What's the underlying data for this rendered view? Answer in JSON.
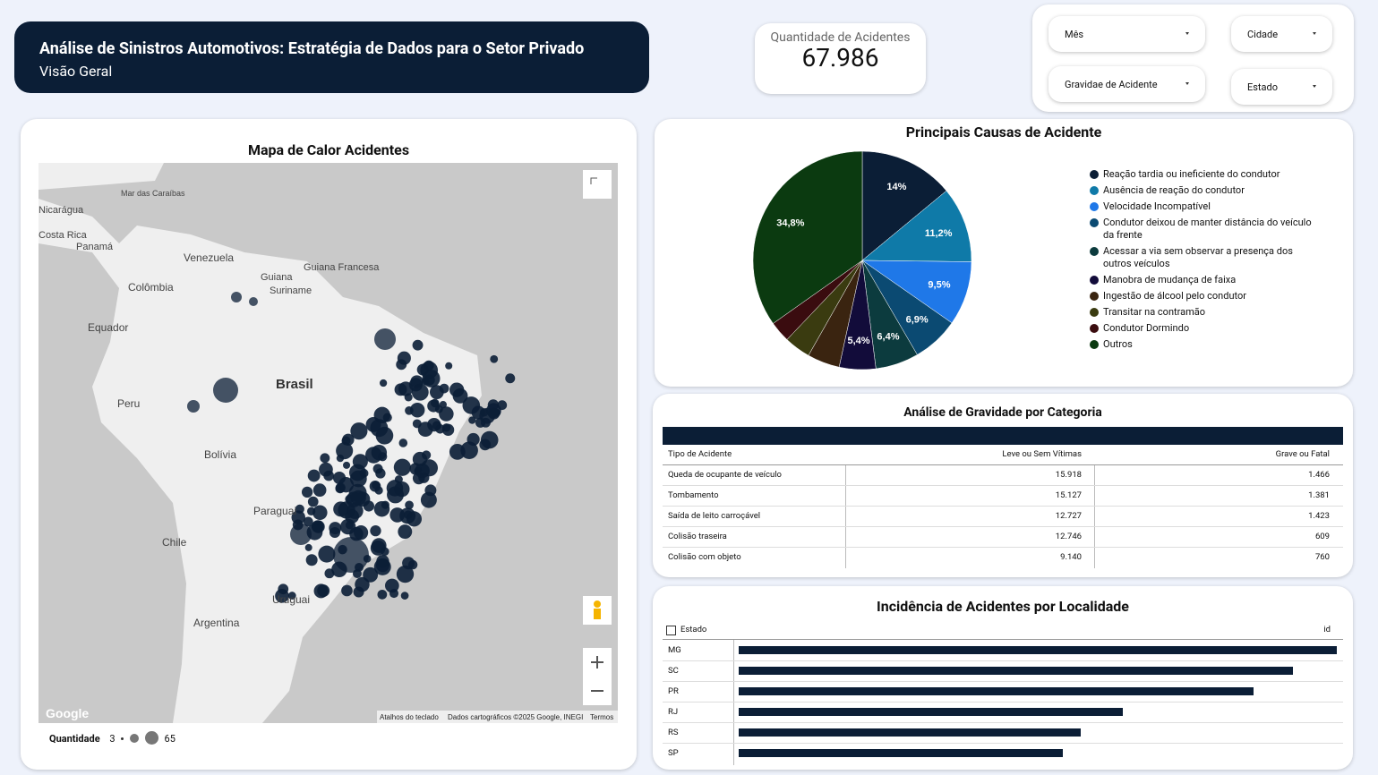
{
  "header": {
    "title": "Análise de Sinistros Automotivos: Estratégia de Dados para o Setor Privado",
    "subtitle": "Visão Geral"
  },
  "kpi": {
    "label": "Quantidade de Acidentes",
    "value": "67.986"
  },
  "filters": [
    "Mês",
    "Cidade",
    "Gravidae de Acidente",
    "Estado"
  ],
  "map": {
    "title": "Mapa de Calor Acidentes",
    "labels": [
      "Nicarágua",
      "Costa Rica",
      "Panamá",
      "Venezuela",
      "Guiana",
      "Guiana Francesa",
      "Suriname",
      "Colômbia",
      "Equador",
      "Peru",
      "Brasil",
      "Bolívia",
      "Paraguai",
      "Chile",
      "Uruguai",
      "Argentina",
      "Mar das Caraíbas"
    ],
    "attribution": [
      "Atalhos do teclado",
      "Dados cartográficos ©2025 Google, INEGI",
      "Termos"
    ],
    "logo": "Google",
    "legend": {
      "label": "Quantidade",
      "min": "3",
      "max": "65"
    }
  },
  "pie": {
    "type": "pie",
    "title": "Principais Causas de Acidente",
    "categories": [
      "Reação tardia ou ineficiente do condutor",
      "Ausência de reação do condutor",
      "Velocidade Incompatível",
      "Condutor deixou de manter distância do veículo da frente",
      "Acessar a via sem observar a presença dos outros veículos",
      "Manobra de mudança de faixa",
      "Ingestão de álcool pelo condutor",
      "Transitar na contramão",
      "Condutor Dormindo",
      "Outros"
    ],
    "values": [
      14,
      11.2,
      9.5,
      6.9,
      6.4,
      5.4,
      4.8,
      3.9,
      3.1,
      34.8
    ],
    "value_labels": [
      "14%",
      "11,2%",
      "9,5%",
      "6,9%",
      "6,4%",
      "5,4%",
      null,
      null,
      null,
      "34,8%"
    ],
    "colors": [
      "#0b1e36",
      "#0f7aa8",
      "#1f78e8",
      "#0b4a72",
      "#0c3b3e",
      "#120c3a",
      "#3a2410",
      "#3a3b10",
      "#3a0c0f",
      "#0b3a10"
    ]
  },
  "table": {
    "title": "Análise de Gravidade por Categoria",
    "columns": [
      "Tipo de Acidente",
      "Leve ou Sem Vítimas",
      "Grave ou Fatal"
    ],
    "rows": [
      [
        "Queda de ocupante de veículo",
        "15.918",
        "1.466"
      ],
      [
        "Tombamento",
        "15.127",
        "1.381"
      ],
      [
        "Saída de leito carroçável",
        "12.727",
        "1.423"
      ],
      [
        "Colisão traseira",
        "12.746",
        "609"
      ],
      [
        "Colisão com objeto",
        "9.140",
        "760"
      ]
    ]
  },
  "bars": {
    "type": "bar",
    "title": "Incidência de Acidentes por Localidade",
    "dimension": "Estado",
    "metric": "id",
    "categories": [
      "MG",
      "SC",
      "PR",
      "RJ",
      "RS",
      "SP"
    ],
    "values": [
      668,
      619,
      575,
      429,
      382,
      362
    ],
    "color": "#0b1e36"
  }
}
